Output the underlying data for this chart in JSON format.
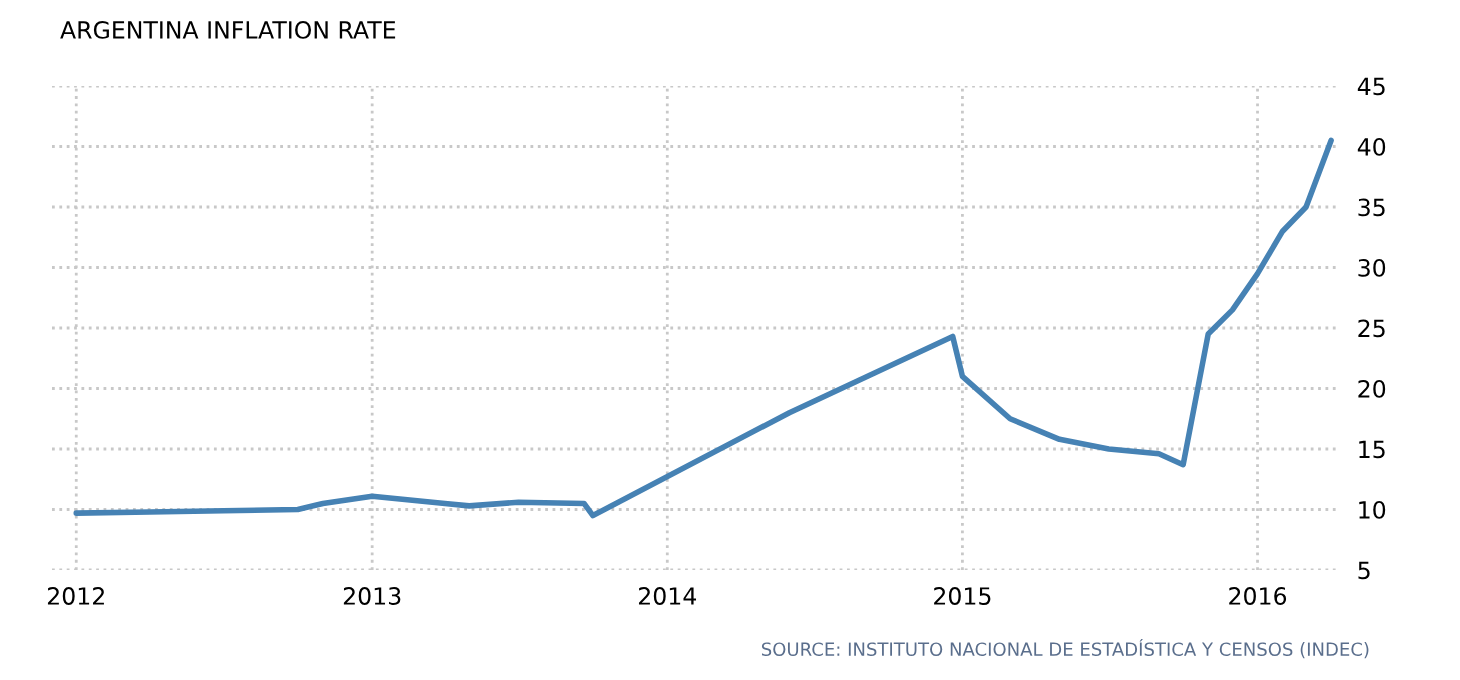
{
  "chart_data": {
    "type": "line",
    "title": "ARGENTINA INFLATION RATE",
    "x": [
      "2012-01",
      "2012-04",
      "2012-07",
      "2012-10",
      "2012-11",
      "2013-01",
      "2013-04",
      "2013-05",
      "2013-07",
      "2013-09-20",
      "2013-10",
      "2014-06",
      "2014-12-20",
      "2015-01",
      "2015-03",
      "2015-05",
      "2015-07",
      "2015-09",
      "2015-10",
      "2015-11",
      "2015-12",
      "2016-01",
      "2016-02",
      "2016-03",
      "2016-04"
    ],
    "series": [
      {
        "color": "#4682b4",
        "values": [
          9.7,
          9.8,
          9.9,
          10.0,
          10.5,
          11.1,
          10.5,
          10.3,
          10.6,
          10.5,
          9.5,
          18.0,
          24.3,
          21.0,
          17.5,
          15.8,
          15.0,
          14.6,
          13.7,
          24.5,
          26.5,
          29.5,
          33.0,
          35.0,
          40.5
        ]
      }
    ],
    "xlim": [
      "2011-12-02",
      "2016-04-12"
    ],
    "ylim": [
      5,
      45
    ],
    "xticks": [
      "2012",
      "2013",
      "2014",
      "2015",
      "2016"
    ],
    "yticks": [
      5,
      10,
      15,
      20,
      25,
      30,
      35,
      40,
      45
    ],
    "grid": true,
    "line_style": "solid",
    "marker": "none",
    "annotations": [
      "SOURCE: INSTITUTO NACIONAL DE ESTADÍSTICA Y CENSOS (INDEC)"
    ]
  }
}
